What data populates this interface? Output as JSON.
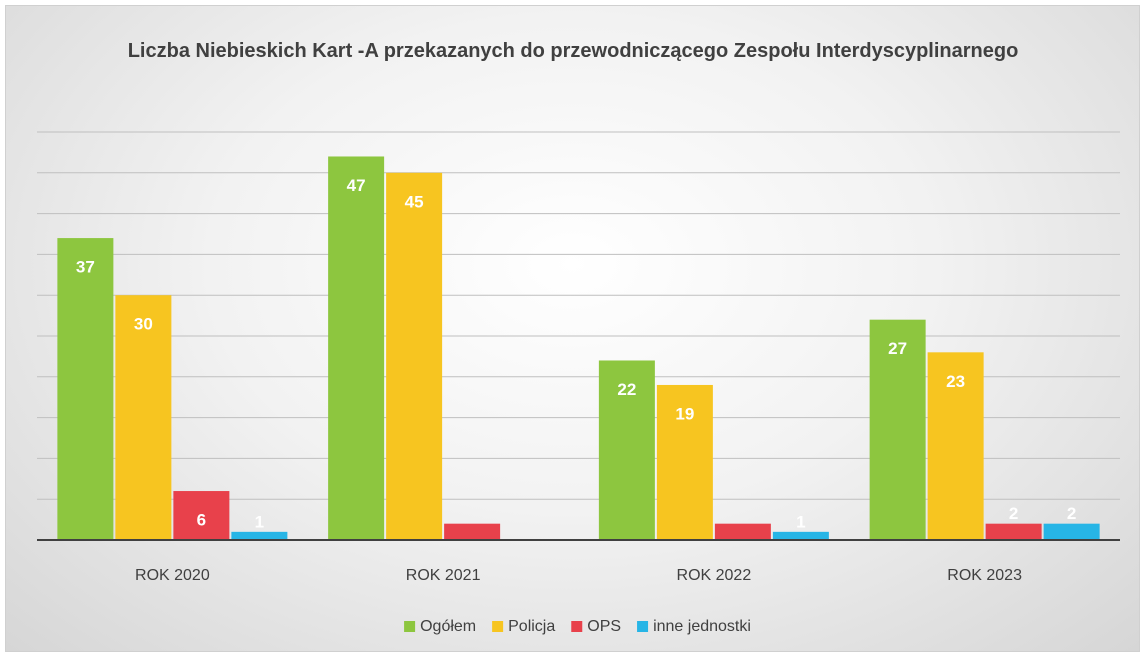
{
  "chart_data": {
    "type": "bar",
    "title": "Liczba Niebieskich Kart -A przekazanych do przewodniczącego Zespołu Interdyscyplinarnego",
    "categories": [
      "ROK 2020",
      "ROK 2021",
      "ROK 2022",
      "ROK 2023"
    ],
    "series": [
      {
        "name": "Ogółem",
        "color": "#8dc63f",
        "values": [
          37,
          47,
          22,
          27
        ]
      },
      {
        "name": "Policja",
        "color": "#f7c520",
        "values": [
          30,
          45,
          19,
          23
        ]
      },
      {
        "name": "OPS",
        "color": "#e8414b",
        "values": [
          6,
          2,
          2,
          2
        ],
        "value_labels": [
          "6",
          null,
          null,
          "2"
        ]
      },
      {
        "name": "inne jednostki",
        "color": "#27b5e6",
        "values": [
          1,
          0,
          1,
          2
        ],
        "value_labels": [
          "1",
          null,
          "1",
          "2"
        ]
      }
    ],
    "ylim": [
      0,
      50
    ],
    "yticks": [
      0,
      5,
      10,
      15,
      20,
      25,
      30,
      35,
      40,
      45,
      50
    ],
    "grid": true,
    "legend": "bottom"
  }
}
